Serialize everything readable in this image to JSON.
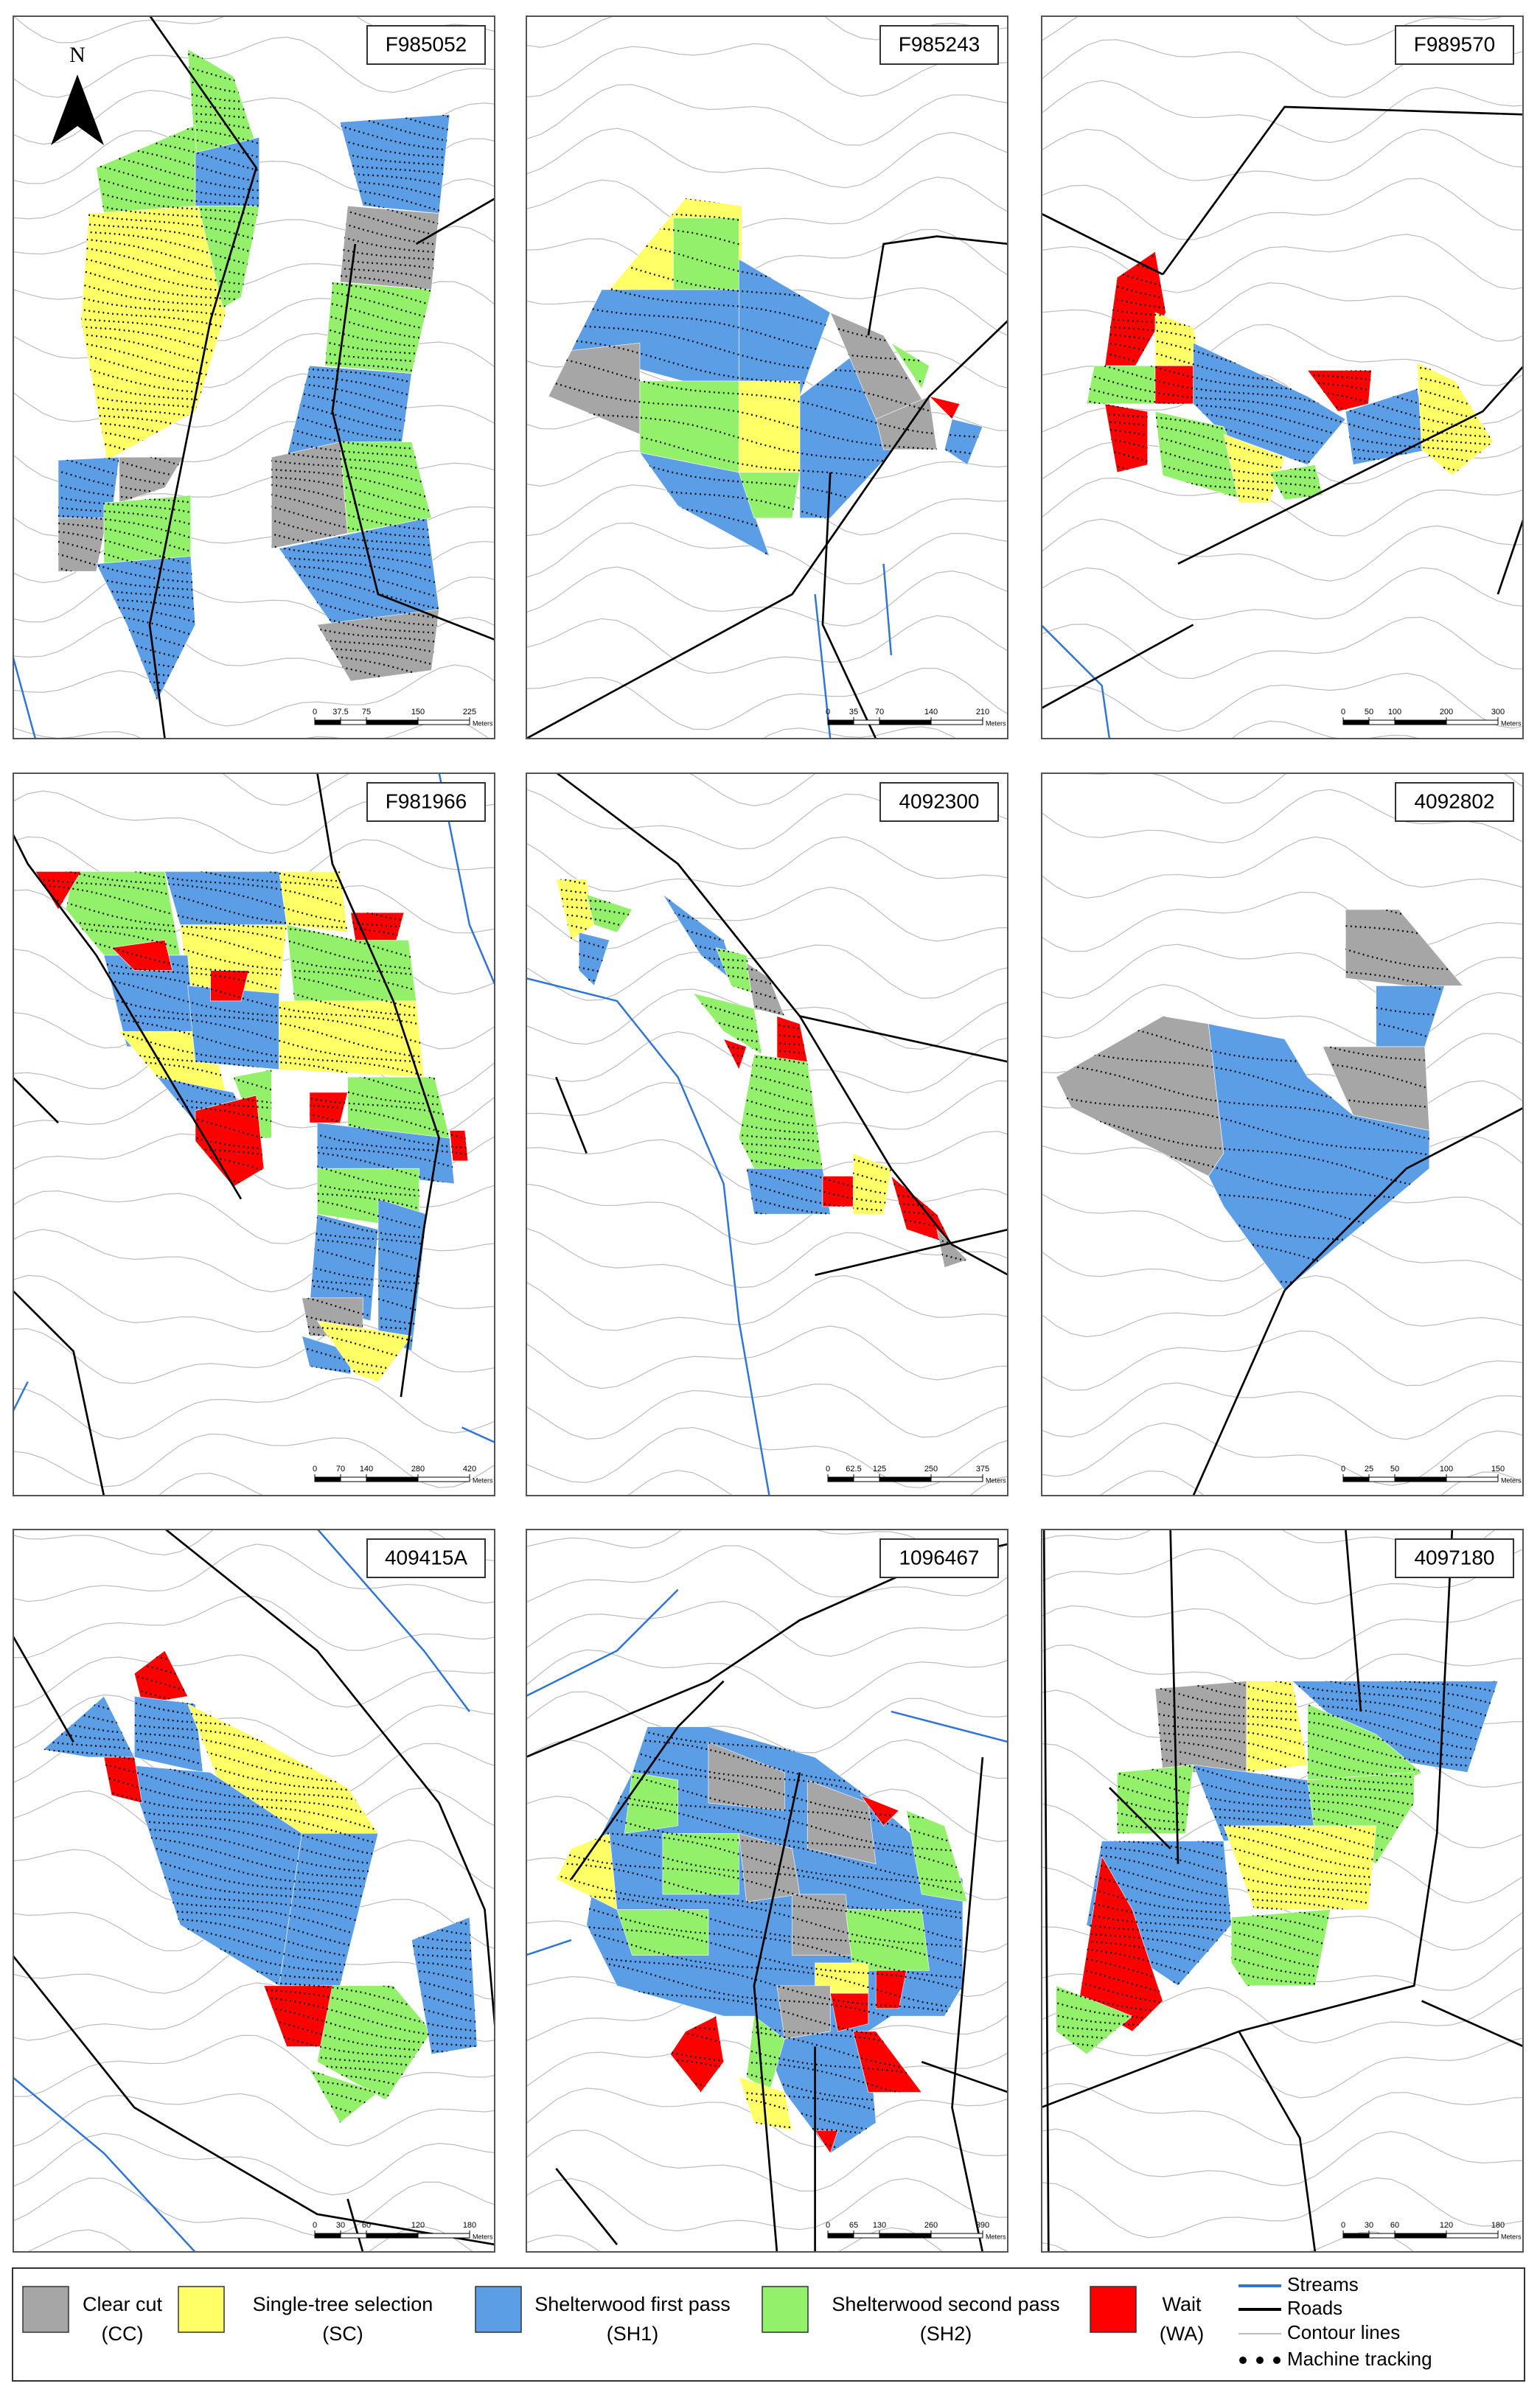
{
  "north": "N",
  "panels": [
    {
      "id": "F985052",
      "scale": [
        0,
        37.5,
        75,
        150,
        225
      ],
      "unit": "Meters"
    },
    {
      "id": "F985243",
      "scale": [
        0,
        35,
        70,
        140,
        210
      ],
      "unit": "Meters"
    },
    {
      "id": "F989570",
      "scale": [
        0,
        50,
        100,
        200,
        300
      ],
      "unit": "Meters"
    },
    {
      "id": "F981966",
      "scale": [
        0,
        70,
        140,
        280,
        420
      ],
      "unit": "Meters"
    },
    {
      "id": "4092300",
      "scale": [
        0,
        62.5,
        125,
        250,
        375
      ],
      "unit": "Meters"
    },
    {
      "id": "4092802",
      "scale": [
        0,
        25,
        50,
        100,
        150
      ],
      "unit": "Meters"
    },
    {
      "id": "409415A",
      "scale": [
        0,
        30,
        60,
        120,
        180
      ],
      "unit": "Meters"
    },
    {
      "id": "1096467",
      "scale": [
        0,
        65,
        130,
        260,
        390
      ],
      "unit": "Meters"
    },
    {
      "id": "4097180",
      "scale": [
        0,
        30,
        60,
        120,
        180
      ],
      "unit": "Meters"
    }
  ],
  "legend": {
    "areas": [
      {
        "label": "Clear cut",
        "abbr": "(CC)",
        "color": "#a6a6a6"
      },
      {
        "label": "Single-tree selection",
        "abbr": "(SC)",
        "color": "#ffff66"
      },
      {
        "label": "Shelterwood first pass",
        "abbr": "(SH1)",
        "color": "#5b9ee6"
      },
      {
        "label": "Shelterwood second pass",
        "abbr": "(SH2)",
        "color": "#92f06a"
      },
      {
        "label": "Wait",
        "abbr": "(WA)",
        "color": "#ff0000"
      }
    ],
    "lines": [
      {
        "label": "Streams",
        "color": "#2e75d6"
      },
      {
        "label": "Roads",
        "color": "#000000"
      },
      {
        "label": "Contour lines",
        "color": "#bdbdbd"
      },
      {
        "label": "Machine tracking",
        "color": "#000000"
      }
    ]
  }
}
